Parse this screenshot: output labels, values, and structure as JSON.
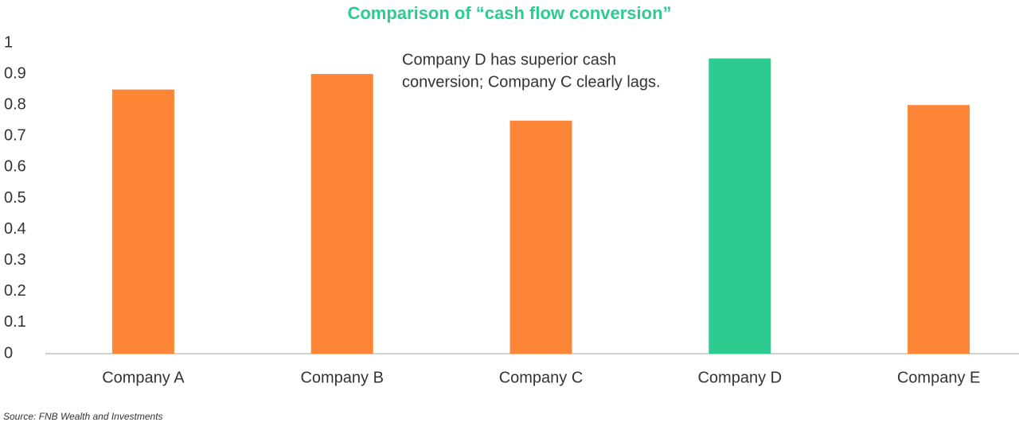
{
  "chart_data": {
    "type": "bar",
    "title": "Comparison of “cash flow conversion”",
    "categories": [
      "Company A",
      "Company B",
      "Company C",
      "Company D",
      "Company E"
    ],
    "values": [
      0.85,
      0.9,
      0.75,
      0.95,
      0.8
    ],
    "colors": [
      "#fd8636",
      "#fd8636",
      "#fd8636",
      "#2ecb91",
      "#fd8636"
    ],
    "ylim": [
      0,
      1
    ],
    "yticks": [
      0,
      0.1,
      0.2,
      0.3,
      0.4,
      0.5,
      0.6,
      0.7,
      0.8,
      0.9,
      1
    ],
    "grid": false,
    "annotation": [
      "Company D has superior cash",
      "conversion; Company C clearly lags."
    ],
    "source": "Source: FNB Wealth and Investments"
  }
}
